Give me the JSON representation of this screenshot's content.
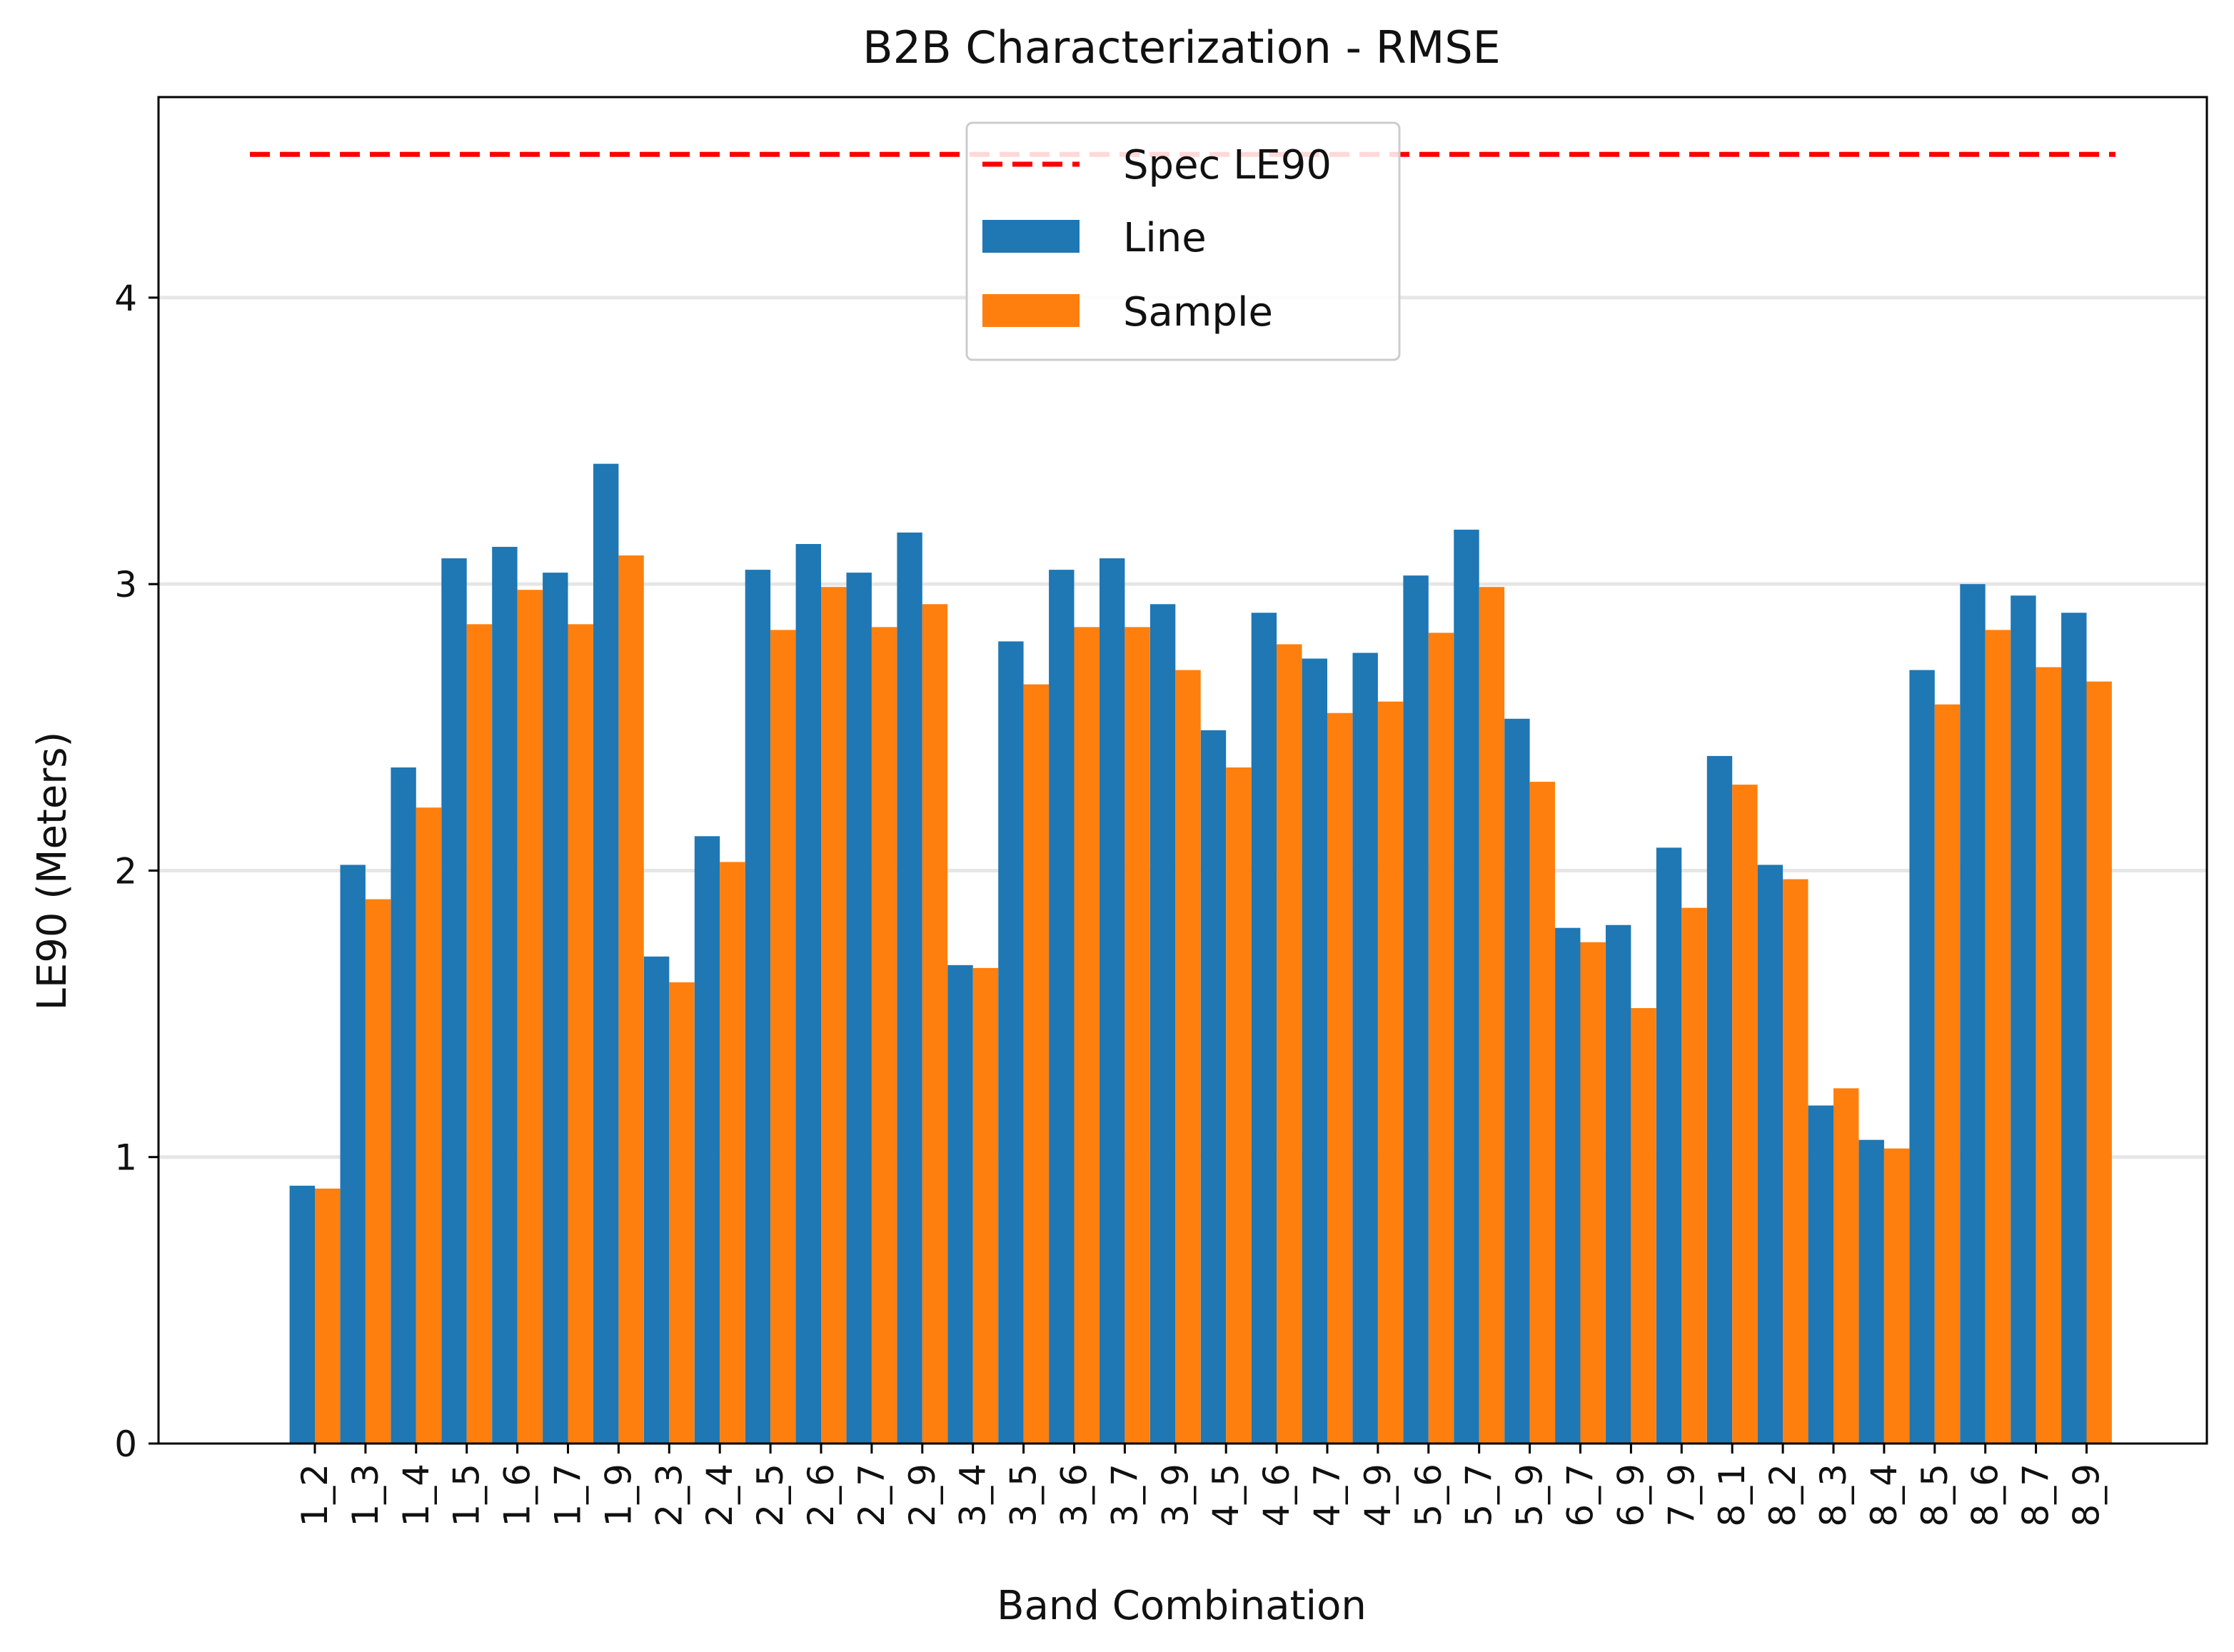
{
  "chart_data": {
    "type": "bar",
    "title": "B2B Characterization - RMSE",
    "xlabel": "Band Combination",
    "ylabel": "LE90 (Meters)",
    "ylim": [
      0,
      4.7
    ],
    "yticks": [
      0,
      1,
      2,
      3,
      4
    ],
    "grid": "horizontal",
    "legend_position": "top-center",
    "categories": [
      "1_2",
      "1_3",
      "1_4",
      "1_5",
      "1_6",
      "1_7",
      "1_9",
      "2_3",
      "2_4",
      "2_5",
      "2_6",
      "2_7",
      "2_9",
      "3_4",
      "3_5",
      "3_6",
      "3_7",
      "3_9",
      "4_5",
      "4_6",
      "4_7",
      "4_9",
      "5_6",
      "5_7",
      "5_9",
      "6_7",
      "6_9",
      "7_9",
      "8_1",
      "8_2",
      "8_3",
      "8_4",
      "8_5",
      "8_6",
      "8_7",
      "8_9"
    ],
    "series": [
      {
        "name": "Line",
        "color": "#1f77b4",
        "values": [
          0.9,
          2.02,
          2.36,
          3.09,
          3.13,
          3.04,
          3.42,
          1.7,
          2.12,
          3.05,
          3.14,
          3.04,
          3.18,
          1.67,
          2.8,
          3.05,
          3.09,
          2.93,
          2.49,
          2.9,
          2.74,
          2.76,
          3.03,
          3.19,
          2.53,
          1.8,
          1.81,
          2.08,
          2.4,
          2.02,
          1.18,
          1.06,
          2.7,
          3.0,
          2.96,
          2.9
        ]
      },
      {
        "name": "Sample",
        "color": "#ff7f0e",
        "values": [
          0.89,
          1.9,
          2.22,
          2.86,
          2.98,
          2.86,
          3.1,
          1.61,
          2.03,
          2.84,
          2.99,
          2.85,
          2.93,
          1.66,
          2.65,
          2.85,
          2.85,
          2.7,
          2.36,
          2.79,
          2.55,
          2.59,
          2.83,
          2.99,
          2.31,
          1.75,
          1.52,
          1.87,
          2.3,
          1.97,
          1.24,
          1.03,
          2.58,
          2.84,
          2.71,
          2.66
        ]
      }
    ],
    "reference_line": {
      "name": "Spec LE90",
      "value": 4.5,
      "color": "#ff0000",
      "style": "dashed"
    }
  }
}
